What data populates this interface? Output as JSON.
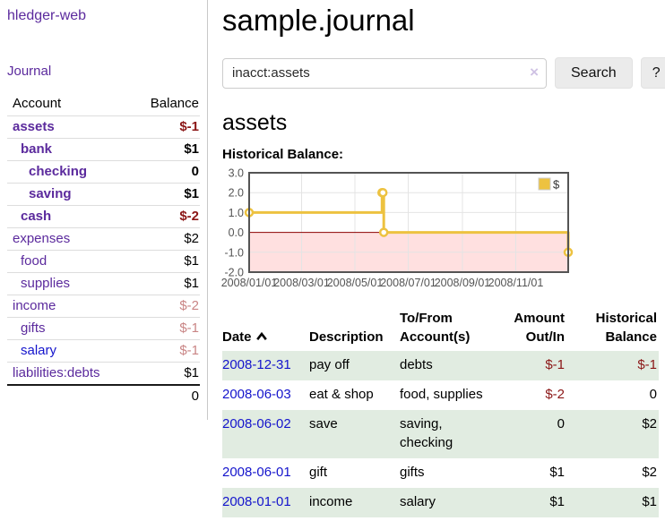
{
  "app": {
    "brand": "hledger-web",
    "nav_journal": "Journal"
  },
  "sidebar": {
    "headers": {
      "account": "Account",
      "balance": "Balance"
    },
    "accounts": [
      {
        "label": "assets",
        "depth": 1,
        "bold": true,
        "balance": "$-1",
        "balance_tone": "neg-strong",
        "link_tone": "purple"
      },
      {
        "label": "bank",
        "depth": 2,
        "bold": true,
        "balance": "$1",
        "balance_tone": "plain",
        "link_tone": "purple"
      },
      {
        "label": "checking",
        "depth": 3,
        "bold": true,
        "balance": "0",
        "balance_tone": "plain",
        "link_tone": "purple"
      },
      {
        "label": "saving",
        "depth": 3,
        "bold": true,
        "balance": "$1",
        "balance_tone": "plain",
        "link_tone": "purple"
      },
      {
        "label": "cash",
        "depth": 2,
        "bold": true,
        "balance": "$-2",
        "balance_tone": "neg-strong",
        "link_tone": "purple"
      },
      {
        "label": "expenses",
        "depth": 1,
        "bold": false,
        "balance": "$2",
        "balance_tone": "plain",
        "link_tone": "purple"
      },
      {
        "label": "food",
        "depth": 2,
        "bold": false,
        "balance": "$1",
        "balance_tone": "plain",
        "link_tone": "purple"
      },
      {
        "label": "supplies",
        "depth": 2,
        "bold": false,
        "balance": "$1",
        "balance_tone": "plain",
        "link_tone": "purple"
      },
      {
        "label": "income",
        "depth": 1,
        "bold": false,
        "balance": "$-2",
        "balance_tone": "neg-soft",
        "link_tone": "purple"
      },
      {
        "label": "gifts",
        "depth": 2,
        "bold": false,
        "balance": "$-1",
        "balance_tone": "neg-soft",
        "link_tone": "purple"
      },
      {
        "label": "salary",
        "depth": 2,
        "bold": false,
        "balance": "$-1",
        "balance_tone": "neg-soft",
        "link_tone": "blue"
      },
      {
        "label": "liabilities:debts",
        "depth": 1,
        "bold": false,
        "balance": "$1",
        "balance_tone": "plain",
        "link_tone": "purple"
      }
    ],
    "total": "0"
  },
  "main": {
    "title": "sample.journal",
    "search": {
      "value": "inacct:assets",
      "clear_icon": "×",
      "search_button": "Search",
      "help_button": "?"
    },
    "account_heading": "assets",
    "chart_label": "Historical Balance:"
  },
  "chart_data": {
    "type": "line",
    "step": true,
    "title": "Historical Balance:",
    "series": [
      {
        "name": "$",
        "color": "#edc240",
        "points": [
          [
            "2008-01-01",
            1
          ],
          [
            "2008-06-01",
            2
          ],
          [
            "2008-06-02",
            2
          ],
          [
            "2008-06-03",
            0
          ],
          [
            "2008-12-31",
            -1
          ]
        ]
      }
    ],
    "x_range": [
      "2008-01-01",
      "2008-12-31"
    ],
    "x_ticks": [
      "2008/01/01",
      "2008/03/01",
      "2008/05/01",
      "2008/07/01",
      "2008/09/01",
      "2008/11/01"
    ],
    "y_ticks": [
      3.0,
      2.0,
      1.0,
      0.0,
      -1.0,
      -2.0
    ],
    "ylim": [
      -2,
      3
    ],
    "grid": true,
    "legend_position": "top-right",
    "negative_region_color": "#ff0000",
    "zero_line_color": "#8b0000",
    "grid_color": "#e4e4e4",
    "border_color": "#545454",
    "label_color": "#545454"
  },
  "register": {
    "columns": [
      "Date",
      "Description",
      "To/From Account(s)",
      "Amount Out/In",
      "Historical Balance"
    ],
    "sort": {
      "column": "Date",
      "direction": "asc"
    },
    "rows": [
      {
        "date": "2008-12-31",
        "description": "pay off",
        "accounts": "debts",
        "amount": "$-1",
        "amount_negative": true,
        "balance": "$-1",
        "balance_negative": true
      },
      {
        "date": "2008-06-03",
        "description": "eat & shop",
        "accounts": "food, supplies",
        "amount": "$-2",
        "amount_negative": true,
        "balance": "0",
        "balance_negative": false
      },
      {
        "date": "2008-06-02",
        "description": "save",
        "accounts": "saving, checking",
        "amount": "0",
        "amount_negative": false,
        "balance": "$2",
        "balance_negative": false
      },
      {
        "date": "2008-06-01",
        "description": "gift",
        "accounts": "gifts",
        "amount": "$1",
        "amount_negative": false,
        "balance": "$2",
        "balance_negative": false
      },
      {
        "date": "2008-01-01",
        "description": "income",
        "accounts": "salary",
        "amount": "$1",
        "amount_negative": false,
        "balance": "$1",
        "balance_negative": false
      }
    ]
  }
}
